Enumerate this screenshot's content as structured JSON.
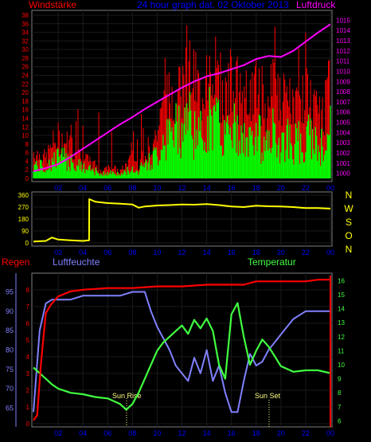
{
  "panel1": {
    "title": "24 hour graph dat. 02 Oktober 2013",
    "left_label": "Windstärke",
    "right_label": "Luftdruck",
    "colors": {
      "wind_gust": "#ff0000",
      "wind_mean": "#00ff00",
      "pressure": "#ff00ff",
      "left_axis": "#ff0000",
      "right_axis": "#ff00ff",
      "x_axis": "#0000ff"
    },
    "left_ticks": [
      "38",
      "36",
      "34",
      "32",
      "30",
      "28",
      "26",
      "24",
      "22",
      "20",
      "18",
      "16",
      "14",
      "12",
      "10",
      "8",
      "6",
      "4",
      "2",
      "0"
    ],
    "right_ticks": [
      "1015",
      "1014",
      "1013",
      "1012",
      "1011",
      "1010",
      "1009",
      "1008",
      "1007",
      "1006",
      "1005",
      "1004",
      "1003",
      "1002",
      "1001",
      "1000"
    ],
    "x_ticks": [
      "02",
      "04",
      "06",
      "08",
      "10",
      "12",
      "14",
      "16",
      "18",
      "20",
      "22",
      "00"
    ]
  },
  "panel2": {
    "direction_letters": [
      "N",
      "W",
      "S",
      "O",
      "N"
    ],
    "left_ticks": [
      "360",
      "270",
      "180",
      "90",
      "0"
    ],
    "x_ticks": [
      "02",
      "04",
      "06",
      "08",
      "10",
      "12",
      "14",
      "16",
      "18",
      "20",
      "22",
      "00"
    ],
    "colors": {
      "direction": "#ffff00",
      "left_axis": "#ffff00",
      "letters": "#ffff00",
      "x_axis": "#0000ff"
    }
  },
  "panel3": {
    "left_title": "Regen",
    "humidity_title": "Luftfeuchte",
    "temp_title": "Temperatur",
    "rain_ticks": [
      "8",
      "7",
      "6",
      "5",
      "4",
      "3",
      "2",
      "1",
      "0"
    ],
    "humidity_ticks": [
      "95",
      "90",
      "85",
      "80",
      "75",
      "70",
      "65"
    ],
    "temp_ticks": [
      "16",
      "15",
      "14",
      "13",
      "12",
      "11",
      "10",
      "9",
      "8",
      "7",
      "6"
    ],
    "x_ticks": [
      "02",
      "04",
      "06",
      "08",
      "10",
      "12",
      "14",
      "16",
      "18",
      "20",
      "22",
      "00"
    ],
    "sun_rise_label": "Sun Rise",
    "sun_set_label": "Sun Set",
    "colors": {
      "rain": "#ff0000",
      "humidity": "#8080ff",
      "temperature": "#40ff40",
      "rain_axis": "#ff0000",
      "humidity_axis": "#8080ff",
      "temp_axis": "#40ff40",
      "x_axis": "#0000ff",
      "sun": "#ffff80"
    }
  },
  "chart_data": [
    {
      "type": "line",
      "x_unit": "hour",
      "x_range": [
        0,
        24
      ],
      "series": [
        {
          "name": "Windstärke",
          "axis": "left",
          "ylim": [
            0,
            38
          ],
          "x": [
            0,
            1,
            1.5,
            2,
            3,
            3.5,
            4,
            5,
            5.5,
            6,
            7,
            7.5,
            8,
            8.5,
            9,
            9.5,
            10,
            10.5,
            11,
            11.5,
            12,
            12.5,
            13,
            13.5,
            14,
            14.5,
            15,
            15.5,
            16,
            16.5,
            17,
            17.5,
            18,
            18.5,
            19,
            19.5,
            20,
            20.5,
            21,
            21.5,
            22,
            22.5,
            23,
            23.5,
            24
          ],
          "y": [
            4,
            3,
            5,
            6,
            5,
            4,
            3,
            2,
            1,
            2,
            1,
            2,
            3,
            2,
            4,
            5,
            7,
            10,
            12,
            14,
            15,
            18,
            14,
            12,
            16,
            18,
            14,
            12,
            15,
            13,
            10,
            12,
            14,
            10,
            12,
            13,
            11,
            12,
            10,
            11,
            12,
            11,
            9,
            10,
            14
          ]
        },
        {
          "name": "Luftdruck",
          "axis": "right",
          "ylim": [
            999.5,
            1015.5
          ],
          "x": [
            0,
            1,
            2,
            3,
            4,
            5,
            6,
            7,
            8,
            9,
            10,
            11,
            12,
            13,
            14,
            15,
            16,
            17,
            18,
            19,
            20,
            21,
            22,
            23,
            24
          ],
          "y": [
            1000.2,
            1000.5,
            1000.9,
            1001.6,
            1002.4,
            1003.2,
            1004.0,
            1004.8,
            1005.5,
            1006.3,
            1007.0,
            1007.7,
            1008.4,
            1009.0,
            1009.5,
            1009.8,
            1010.2,
            1010.6,
            1011.2,
            1011.5,
            1011.4,
            1012.0,
            1012.9,
            1013.8,
            1014.6
          ]
        }
      ]
    },
    {
      "type": "line",
      "x_unit": "hour",
      "x_range": [
        0,
        24
      ],
      "ylim": [
        0,
        360
      ],
      "series": [
        {
          "name": "direction",
          "x": [
            0,
            1,
            1.5,
            2,
            3,
            4,
            4.5,
            4.51,
            5,
            6,
            7,
            8,
            8.5,
            9,
            10,
            11,
            12,
            13,
            14,
            15,
            16,
            17,
            18,
            19,
            20,
            21,
            22,
            23,
            24
          ],
          "y": [
            10,
            15,
            40,
            25,
            20,
            15,
            20,
            330,
            310,
            300,
            295,
            290,
            265,
            275,
            282,
            285,
            290,
            288,
            292,
            285,
            275,
            270,
            280,
            276,
            275,
            270,
            262,
            262,
            258
          ]
        }
      ]
    },
    {
      "type": "line",
      "x_unit": "hour",
      "x_range": [
        0,
        24
      ],
      "series": [
        {
          "name": "Regen",
          "axis": "left",
          "ylim": [
            0,
            8.8
          ],
          "x": [
            0,
            0.3,
            0.6,
            1,
            1.4,
            2,
            3,
            4,
            6,
            8,
            10,
            12,
            14,
            16,
            17,
            18,
            20,
            22,
            23,
            24
          ],
          "y": [
            0.2,
            0.5,
            3.5,
            6.6,
            7.1,
            7.6,
            7.9,
            8.0,
            8.1,
            8.1,
            8.2,
            8.2,
            8.3,
            8.3,
            8.3,
            8.5,
            8.5,
            8.5,
            8.6,
            8.6
          ]
        },
        {
          "name": "Luftfeuchte",
          "ylim": [
            61,
            99
          ],
          "x": [
            0,
            0.5,
            1,
            1.5,
            2,
            3,
            4,
            5,
            6,
            7,
            8,
            9,
            9.5,
            10,
            10.5,
            11,
            11.5,
            12,
            12.5,
            13,
            13.5,
            14,
            14.5,
            15,
            15.5,
            16,
            16.5,
            17,
            17.5,
            18,
            18.5,
            19,
            19.5,
            20,
            20.5,
            21,
            22,
            23,
            24
          ],
          "y": [
            64,
            85,
            92,
            93,
            93,
            93,
            94,
            94,
            94,
            94,
            95,
            95,
            90,
            86,
            83,
            80,
            76,
            74,
            72,
            78,
            74,
            80,
            72,
            76,
            69,
            64,
            64,
            72,
            79,
            76,
            77,
            80,
            82,
            84,
            86,
            88,
            90,
            90,
            90
          ]
        },
        {
          "name": "Temperatur",
          "ylim": [
            5.8,
            16.3
          ],
          "x": [
            0,
            0.5,
            1,
            1.5,
            2,
            3,
            4,
            5,
            6,
            7,
            7.5,
            8,
            8.5,
            9,
            9.5,
            10,
            10.5,
            11,
            11.5,
            12,
            12.5,
            13,
            13.5,
            14,
            14.5,
            15,
            15.5,
            16,
            16.5,
            17,
            17.5,
            18,
            18.5,
            19,
            19.5,
            20,
            21,
            22,
            23,
            24
          ],
          "y": [
            9.8,
            9.4,
            9.0,
            8.6,
            8.3,
            8.0,
            7.9,
            7.7,
            7.6,
            7.2,
            6.8,
            7.2,
            8.0,
            9.0,
            10.0,
            11.0,
            11.6,
            12.0,
            12.4,
            12.8,
            12.2,
            13.2,
            12.6,
            13.3,
            12.4,
            10.0,
            9.0,
            13.6,
            14.4,
            12.0,
            10.0,
            11.0,
            11.8,
            11.3,
            10.6,
            9.9,
            9.5,
            9.6,
            9.6,
            9.4
          ]
        }
      ]
    }
  ]
}
